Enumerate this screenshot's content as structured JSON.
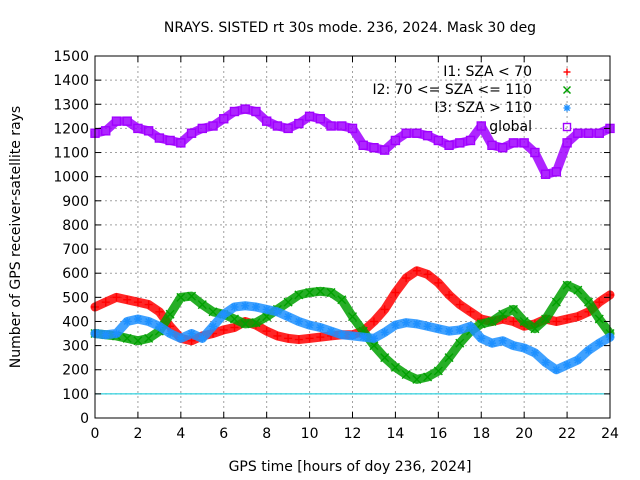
{
  "chart_data": {
    "type": "scatter",
    "title": "NRAYS. SISTED rt 30s mode. 236, 2024. Mask 30 deg",
    "xlabel": "GPS time [hours of doy 236, 2024]",
    "ylabel": "Number of GPS receiver-satellite rays",
    "xlim": [
      0,
      24
    ],
    "ylim": [
      0,
      1500
    ],
    "xticks": [
      "0",
      "2",
      "4",
      "6",
      "8",
      "10",
      "12",
      "14",
      "16",
      "18",
      "20",
      "22",
      "24"
    ],
    "yticks": [
      "0",
      "100",
      "200",
      "300",
      "400",
      "500",
      "600",
      "700",
      "800",
      "900",
      "1000",
      "1100",
      "1200",
      "1300",
      "1400",
      "1500"
    ],
    "grid": true,
    "legend_position": "top-right",
    "threshold_line": {
      "y": 100,
      "color": "#00c8d8"
    },
    "series": [
      {
        "name": "I1: SZA < 70",
        "marker": "+",
        "color": "#ff0000",
        "x": [
          0,
          0.5,
          1,
          1.5,
          2,
          2.5,
          3,
          3.5,
          4,
          4.5,
          5,
          5.5,
          6,
          6.5,
          7,
          7.5,
          8,
          8.5,
          9,
          9.5,
          10,
          10.5,
          11,
          11.5,
          12,
          12.5,
          13,
          13.5,
          14,
          14.5,
          15,
          15.5,
          16,
          16.5,
          17,
          17.5,
          18,
          18.5,
          19,
          19.5,
          20,
          20.5,
          21,
          21.5,
          22,
          22.5,
          23,
          23.5,
          24
        ],
        "y": [
          460,
          480,
          500,
          490,
          480,
          470,
          440,
          380,
          330,
          320,
          340,
          350,
          365,
          375,
          400,
          385,
          360,
          340,
          330,
          325,
          330,
          335,
          340,
          345,
          345,
          360,
          400,
          450,
          520,
          580,
          610,
          595,
          560,
          510,
          470,
          440,
          410,
          400,
          410,
          400,
          380,
          390,
          410,
          400,
          410,
          420,
          440,
          480,
          510
        ]
      },
      {
        "name": "I2: 70 <= SZA <= 110",
        "marker": "x",
        "color": "#00a000",
        "x": [
          0,
          0.5,
          1,
          1.5,
          2,
          2.5,
          3,
          3.5,
          4,
          4.5,
          5,
          5.5,
          6,
          6.5,
          7,
          7.5,
          8,
          8.5,
          9,
          9.5,
          10,
          10.5,
          11,
          11.5,
          12,
          12.5,
          13,
          13.5,
          14,
          14.5,
          15,
          15.5,
          16,
          16.5,
          17,
          17.5,
          18,
          18.5,
          19,
          19.5,
          20,
          20.5,
          21,
          21.5,
          22,
          22.5,
          23,
          23.5,
          24
        ],
        "y": [
          350,
          345,
          340,
          330,
          320,
          330,
          360,
          430,
          500,
          505,
          470,
          440,
          430,
          410,
          390,
          395,
          420,
          450,
          480,
          510,
          520,
          525,
          520,
          490,
          420,
          360,
          300,
          250,
          210,
          180,
          160,
          170,
          195,
          250,
          310,
          360,
          390,
          400,
          430,
          450,
          400,
          370,
          410,
          480,
          550,
          530,
          480,
          410,
          350
        ]
      },
      {
        "name": "I3: SZA > 110",
        "marker": "*",
        "color": "#1e90ff",
        "x": [
          0,
          0.5,
          1,
          1.5,
          2,
          2.5,
          3,
          3.5,
          4,
          4.5,
          5,
          5.5,
          6,
          6.5,
          7,
          7.5,
          8,
          8.5,
          9,
          9.5,
          10,
          10.5,
          11,
          11.5,
          12,
          12.5,
          13,
          13.5,
          14,
          14.5,
          15,
          15.5,
          16,
          16.5,
          17,
          17.5,
          18,
          18.5,
          19,
          19.5,
          20,
          20.5,
          21,
          21.5,
          22,
          22.5,
          23,
          23.5,
          24
        ],
        "y": [
          350,
          345,
          350,
          400,
          410,
          400,
          380,
          350,
          330,
          350,
          330,
          380,
          430,
          460,
          465,
          460,
          450,
          440,
          420,
          400,
          385,
          375,
          360,
          345,
          340,
          335,
          330,
          355,
          385,
          395,
          390,
          380,
          370,
          360,
          365,
          380,
          330,
          310,
          320,
          300,
          290,
          270,
          230,
          200,
          220,
          240,
          280,
          310,
          335
        ]
      },
      {
        "name": "global",
        "marker": "square",
        "color": "#a000ff",
        "x": [
          0,
          0.5,
          1,
          1.5,
          2,
          2.5,
          3,
          3.5,
          4,
          4.5,
          5,
          5.5,
          6,
          6.5,
          7,
          7.5,
          8,
          8.5,
          9,
          9.5,
          10,
          10.5,
          11,
          11.5,
          12,
          12.5,
          13,
          13.5,
          14,
          14.5,
          15,
          15.5,
          16,
          16.5,
          17,
          17.5,
          18,
          18.5,
          19,
          19.5,
          20,
          20.5,
          21,
          21.5,
          22,
          22.5,
          23,
          23.5,
          24
        ],
        "y": [
          1180,
          1190,
          1230,
          1230,
          1200,
          1190,
          1160,
          1150,
          1140,
          1180,
          1200,
          1210,
          1240,
          1270,
          1280,
          1270,
          1230,
          1210,
          1200,
          1220,
          1250,
          1240,
          1210,
          1210,
          1200,
          1130,
          1120,
          1110,
          1150,
          1180,
          1180,
          1170,
          1150,
          1130,
          1140,
          1150,
          1210,
          1130,
          1120,
          1140,
          1140,
          1100,
          1010,
          1020,
          1140,
          1180,
          1180,
          1180,
          1200
        ]
      }
    ]
  }
}
